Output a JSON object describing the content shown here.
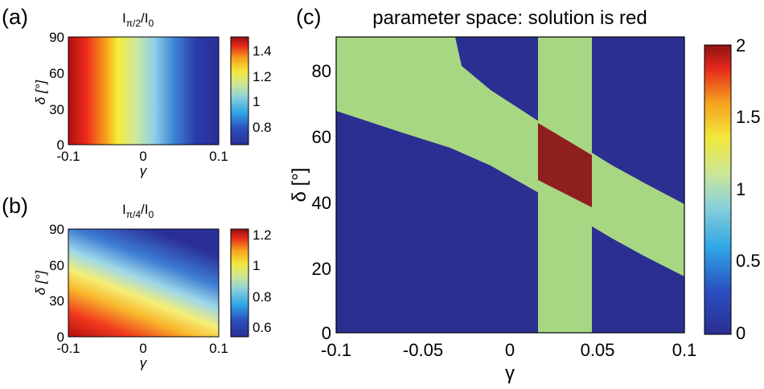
{
  "chart_data": [
    {
      "panel": "(a)",
      "type": "heatmap",
      "title_main": "I",
      "title_sub": "π/2",
      "title_mid": "/I",
      "title_sub2": "0",
      "xlabel": "γ",
      "ylabel": "δ [°]",
      "xlim": [
        -0.1,
        0.1
      ],
      "ylim": [
        0,
        90
      ],
      "xticks": [
        "-0.1",
        "0",
        "0.1"
      ],
      "yticks": [
        "0",
        "30",
        "60",
        "90"
      ],
      "colorbar": {
        "range": [
          0.7,
          1.45
        ],
        "ticks": [
          "0.8",
          "1",
          "1.2",
          "1.4"
        ]
      },
      "description_values": {
        "gamma_min_value": 1.45,
        "gamma_max_value": 0.7
      }
    },
    {
      "panel": "(b)",
      "type": "heatmap",
      "title_main": "I",
      "title_sub": "π/4",
      "title_mid": "/I",
      "title_sub2": "0",
      "xlabel": "γ",
      "ylabel": "δ [°]",
      "xlim": [
        -0.1,
        0.1
      ],
      "ylim": [
        0,
        90
      ],
      "xticks": [
        "-0.1",
        "0",
        "0.1"
      ],
      "yticks": [
        "0",
        "30",
        "60",
        "90"
      ],
      "colorbar": {
        "range": [
          0.55,
          1.22
        ],
        "ticks": [
          "0.6",
          "0.8",
          "1",
          "1.2"
        ]
      }
    },
    {
      "panel": "(c)",
      "type": "heatmap",
      "title": "parameter space: solution is red",
      "xlabel": "γ",
      "ylabel": "δ [°]",
      "xlim": [
        -0.1,
        0.1
      ],
      "ylim": [
        0,
        90
      ],
      "xticks": [
        "-0.1",
        "-0.05",
        "0",
        "0.05",
        "0.1"
      ],
      "yticks": [
        "0",
        "20",
        "40",
        "60",
        "80"
      ],
      "colorbar": {
        "range": [
          0,
          2
        ],
        "ticks": [
          "0",
          "0.5",
          "1",
          "1.5",
          "2"
        ]
      },
      "vertical_band_gamma": [
        0.017,
        0.048
      ],
      "diagonal_band": {
        "lower_edge": [
          [
            -0.1,
            73
          ],
          [
            0.1,
            17
          ]
        ],
        "upper_edge_start": [
          [
            -0.084,
            90
          ]
        ],
        "upper_edge_points": [
          [
            -0.1,
            90
          ],
          [
            -0.03,
            90
          ],
          [
            0.1,
            40
          ]
        ]
      },
      "values": {
        "background": 0,
        "single_band": 1,
        "overlap_solution": 2
      }
    }
  ]
}
